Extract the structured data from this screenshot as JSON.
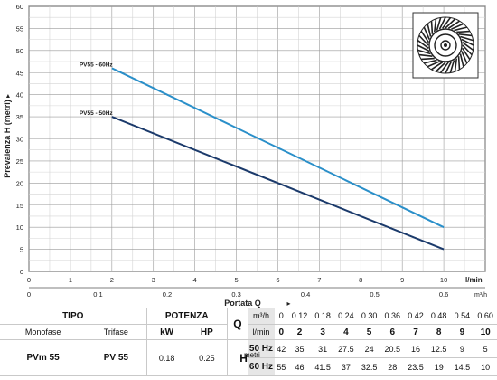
{
  "chart_data": {
    "type": "line",
    "ylabel": "Prevalenza H (metri)",
    "xlabel": "Portata Q",
    "x_unit_top": "l/min",
    "x_unit_bottom": "m³/h",
    "xlim": [
      0,
      11
    ],
    "ylim": [
      0,
      60
    ],
    "x_ticks": [
      0,
      1,
      2,
      3,
      4,
      5,
      6,
      7,
      8,
      9,
      10
    ],
    "y_ticks": [
      0,
      5,
      10,
      15,
      20,
      25,
      30,
      35,
      40,
      45,
      50,
      55,
      60
    ],
    "x2_ticks": [
      {
        "x": 0,
        "label": "0"
      },
      {
        "x": 1.667,
        "label": "0.1"
      },
      {
        "x": 3.333,
        "label": "0.2"
      },
      {
        "x": 5,
        "label": "0.3"
      },
      {
        "x": 6.667,
        "label": "0.4"
      },
      {
        "x": 8.333,
        "label": "0.5"
      },
      {
        "x": 10,
        "label": "0.6"
      }
    ],
    "grid": true,
    "series": [
      {
        "name": "PV55 - 60Hz",
        "color": "#2a8fc9",
        "x": [
          2,
          10
        ],
        "y": [
          46,
          10
        ]
      },
      {
        "name": "PV55 - 50Hz",
        "color": "#1b3a6b",
        "x": [
          2,
          10
        ],
        "y": [
          35,
          5
        ]
      }
    ]
  },
  "table": {
    "tipo_label": "TIPO",
    "potenza_label": "POTENZA",
    "q_label": "Q",
    "monofase_label": "Monofase",
    "trifase_label": "Trifase",
    "kw_label": "kW",
    "hp_label": "HP",
    "unit_m3h": "m³/h",
    "unit_lmin": "l/min",
    "h_symbol": "H",
    "h_unit": "metri",
    "m3h_values": [
      "0",
      "0.12",
      "0.18",
      "0.24",
      "0.30",
      "0.36",
      "0.42",
      "0.48",
      "0.54",
      "0.60"
    ],
    "lmin_values": [
      "0",
      "2",
      "3",
      "4",
      "5",
      "6",
      "7",
      "8",
      "9",
      "10"
    ],
    "rows": [
      {
        "freq": "50 Hz",
        "values": [
          "42",
          "35",
          "31",
          "27.5",
          "24",
          "20.5",
          "16",
          "12.5",
          "9",
          "5"
        ]
      },
      {
        "freq": "60 Hz",
        "values": [
          "55",
          "46",
          "41.5",
          "37",
          "32.5",
          "28",
          "23.5",
          "19",
          "14.5",
          "10"
        ]
      }
    ],
    "model": {
      "monofase": "PVm 55",
      "trifase": "PV 55",
      "kw": "0.18",
      "hp": "0.25"
    }
  }
}
